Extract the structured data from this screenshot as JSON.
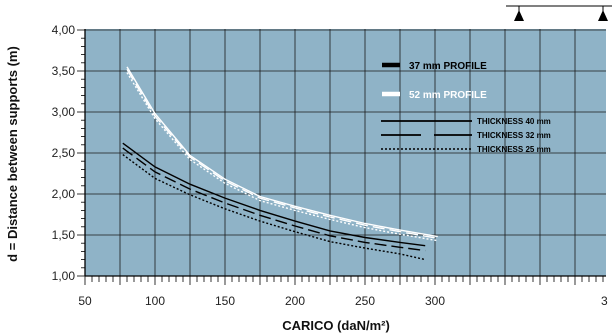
{
  "chart_data": {
    "type": "line",
    "xlabel": "CARICO (daN/m²)",
    "ylabel": "d = Distance between supports (m)",
    "xlim": [
      50,
      300
    ],
    "ylim": [
      1.0,
      4.0
    ],
    "x_ticks": [
      "50",
      "100",
      "150",
      "200",
      "250",
      "300"
    ],
    "y_ticks": [
      "1,00",
      "1,50",
      "2,00",
      "2,50",
      "3,00",
      "3,50",
      "4,00"
    ],
    "grid": true,
    "plot_background": "#8fb3c7",
    "legend": {
      "placement": "top-right",
      "profile_entries": [
        {
          "label": "37 mm PROFILE",
          "color": "#000000"
        },
        {
          "label": "52 mm PROFILE",
          "color": "#ffffff"
        }
      ],
      "thickness_entries": [
        {
          "label": "THICKNESS 40 mm",
          "style": "solid"
        },
        {
          "label": "THICKNESS 32 mm",
          "style": "dashed"
        },
        {
          "label": "THICKNESS 25 mm",
          "style": "dotted"
        }
      ]
    },
    "series": [
      {
        "profile": "52 mm PROFILE",
        "thickness": "THICKNESS 40 mm",
        "color": "#ffffff",
        "dash": "solid",
        "points": [
          [
            80,
            3.55
          ],
          [
            100,
            2.98
          ],
          [
            125,
            2.47
          ],
          [
            150,
            2.18
          ],
          [
            175,
            1.97
          ],
          [
            200,
            1.85
          ],
          [
            225,
            1.74
          ],
          [
            250,
            1.64
          ],
          [
            275,
            1.56
          ],
          [
            302,
            1.48
          ]
        ]
      },
      {
        "profile": "52 mm PROFILE",
        "thickness": "THICKNESS 32 mm",
        "color": "#ffffff",
        "dash": "dashed",
        "points": [
          [
            80,
            3.52
          ],
          [
            100,
            2.95
          ],
          [
            125,
            2.45
          ],
          [
            150,
            2.16
          ],
          [
            175,
            1.95
          ],
          [
            200,
            1.83
          ],
          [
            225,
            1.72
          ],
          [
            250,
            1.62
          ],
          [
            275,
            1.54
          ],
          [
            302,
            1.46
          ]
        ]
      },
      {
        "profile": "52 mm PROFILE",
        "thickness": "THICKNESS 25 mm",
        "color": "#ffffff",
        "dash": "dotted",
        "points": [
          [
            80,
            3.48
          ],
          [
            100,
            2.92
          ],
          [
            125,
            2.42
          ],
          [
            150,
            2.13
          ],
          [
            175,
            1.92
          ],
          [
            200,
            1.8
          ],
          [
            225,
            1.69
          ],
          [
            250,
            1.59
          ],
          [
            275,
            1.51
          ],
          [
            302,
            1.43
          ]
        ]
      },
      {
        "profile": "37 mm PROFILE",
        "thickness": "THICKNESS 40 mm",
        "color": "#000000",
        "dash": "solid",
        "points": [
          [
            77,
            2.62
          ],
          [
            100,
            2.33
          ],
          [
            125,
            2.12
          ],
          [
            150,
            1.95
          ],
          [
            175,
            1.8
          ],
          [
            200,
            1.67
          ],
          [
            225,
            1.55
          ],
          [
            250,
            1.47
          ],
          [
            275,
            1.41
          ],
          [
            293,
            1.37
          ]
        ]
      },
      {
        "profile": "37 mm PROFILE",
        "thickness": "THICKNESS 32 mm",
        "color": "#000000",
        "dash": "dashed",
        "points": [
          [
            77,
            2.56
          ],
          [
            100,
            2.27
          ],
          [
            125,
            2.06
          ],
          [
            150,
            1.89
          ],
          [
            175,
            1.74
          ],
          [
            200,
            1.61
          ],
          [
            225,
            1.49
          ],
          [
            250,
            1.41
          ],
          [
            275,
            1.35
          ],
          [
            293,
            1.31
          ]
        ]
      },
      {
        "profile": "37 mm PROFILE",
        "thickness": "THICKNESS 25 mm",
        "color": "#000000",
        "dash": "dotted",
        "points": [
          [
            77,
            2.48
          ],
          [
            100,
            2.19
          ],
          [
            125,
            1.99
          ],
          [
            150,
            1.82
          ],
          [
            175,
            1.67
          ],
          [
            200,
            1.54
          ],
          [
            225,
            1.42
          ],
          [
            250,
            1.34
          ],
          [
            275,
            1.27
          ],
          [
            293,
            1.2
          ]
        ]
      }
    ]
  }
}
